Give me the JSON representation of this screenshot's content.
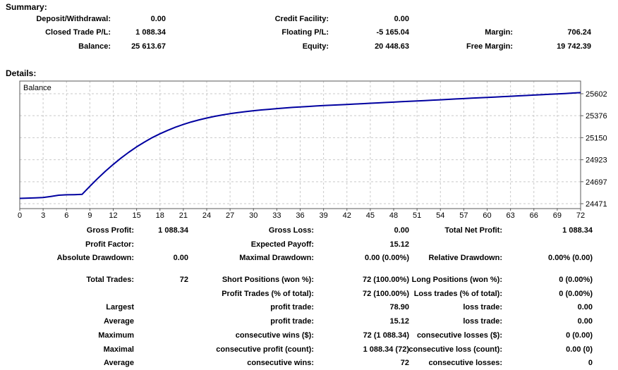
{
  "summary": {
    "heading": "Summary:",
    "rows": [
      [
        "Deposit/Withdrawal:",
        "0.00",
        "Credit Facility:",
        "0.00",
        "",
        ""
      ],
      [
        "Closed Trade P/L:",
        "1 088.34",
        "Floating P/L:",
        "-5 165.04",
        "Margin:",
        "706.24"
      ],
      [
        "Balance:",
        "25 613.67",
        "Equity:",
        "20 448.63",
        "Free Margin:",
        "19 742.39"
      ]
    ]
  },
  "details": {
    "heading": "Details:",
    "stats_top": [
      [
        "Gross Profit:",
        "1 088.34",
        "Gross Loss:",
        "0.00",
        "Total Net Profit:",
        "1 088.34"
      ],
      [
        "Profit Factor:",
        "",
        "Expected Payoff:",
        "15.12",
        "",
        ""
      ],
      [
        "Absolute Drawdown:",
        "0.00",
        "Maximal Drawdown:",
        "0.00 (0.00%)",
        "Relative Drawdown:",
        "0.00% (0.00)"
      ]
    ],
    "stats_bottom": [
      [
        "Total Trades:",
        "72",
        "Short Positions (won %):",
        "72 (100.00%)",
        "Long Positions (won %):",
        "0 (0.00%)"
      ],
      [
        "",
        "",
        "Profit Trades (% of total):",
        "72 (100.00%)",
        "Loss trades (% of total):",
        "0 (0.00%)"
      ],
      [
        "Largest",
        "",
        "profit trade:",
        "78.90",
        "loss trade:",
        "0.00"
      ],
      [
        "Average",
        "",
        "profit trade:",
        "15.12",
        "loss trade:",
        "0.00"
      ],
      [
        "Maximum",
        "",
        "consecutive wins ($):",
        "72 (1 088.34)",
        "consecutive losses ($):",
        "0 (0.00)"
      ],
      [
        "Maximal",
        "",
        "consecutive profit (count):",
        "1 088.34 (72)",
        "consecutive loss (count):",
        "0.00 (0)"
      ],
      [
        "Average",
        "",
        "consecutive wins:",
        "72",
        "consecutive losses:",
        "0"
      ]
    ]
  },
  "chart_data": {
    "type": "line",
    "title": "Balance",
    "legend": "Balance",
    "legend_position": "top-left",
    "grid": "dashed",
    "y_axis_side": "right",
    "x_min": 0,
    "x_max": 72,
    "x_tick_step": 3,
    "yticks": [
      24471,
      24697,
      24923,
      25150,
      25376,
      25602
    ],
    "line_color": "#0000A0",
    "series": [
      {
        "name": "Balance",
        "values": [
          24525.33,
          24528,
          24531,
          24534,
          24546,
          24558,
          24562,
          24564,
          24567,
          24650,
          24730,
          24805,
          24875,
          24940,
          25000,
          25055,
          25105,
          25150,
          25190,
          25226,
          25258,
          25286,
          25311,
          25333,
          25352,
          25369,
          25384,
          25397,
          25408,
          25418,
          25427,
          25435,
          25442,
          25449,
          25455,
          25461,
          25466,
          25471,
          25476,
          25480,
          25484,
          25488,
          25492,
          25496,
          25500,
          25504,
          25508,
          25512,
          25516,
          25520,
          25524,
          25528,
          25532,
          25536,
          25540,
          25544,
          25548,
          25552,
          25556,
          25560,
          25564,
          25568,
          25572,
          25576,
          25580,
          25584,
          25588,
          25592,
          25596,
          25600,
          25604,
          25609,
          25613.67
        ]
      }
    ]
  }
}
